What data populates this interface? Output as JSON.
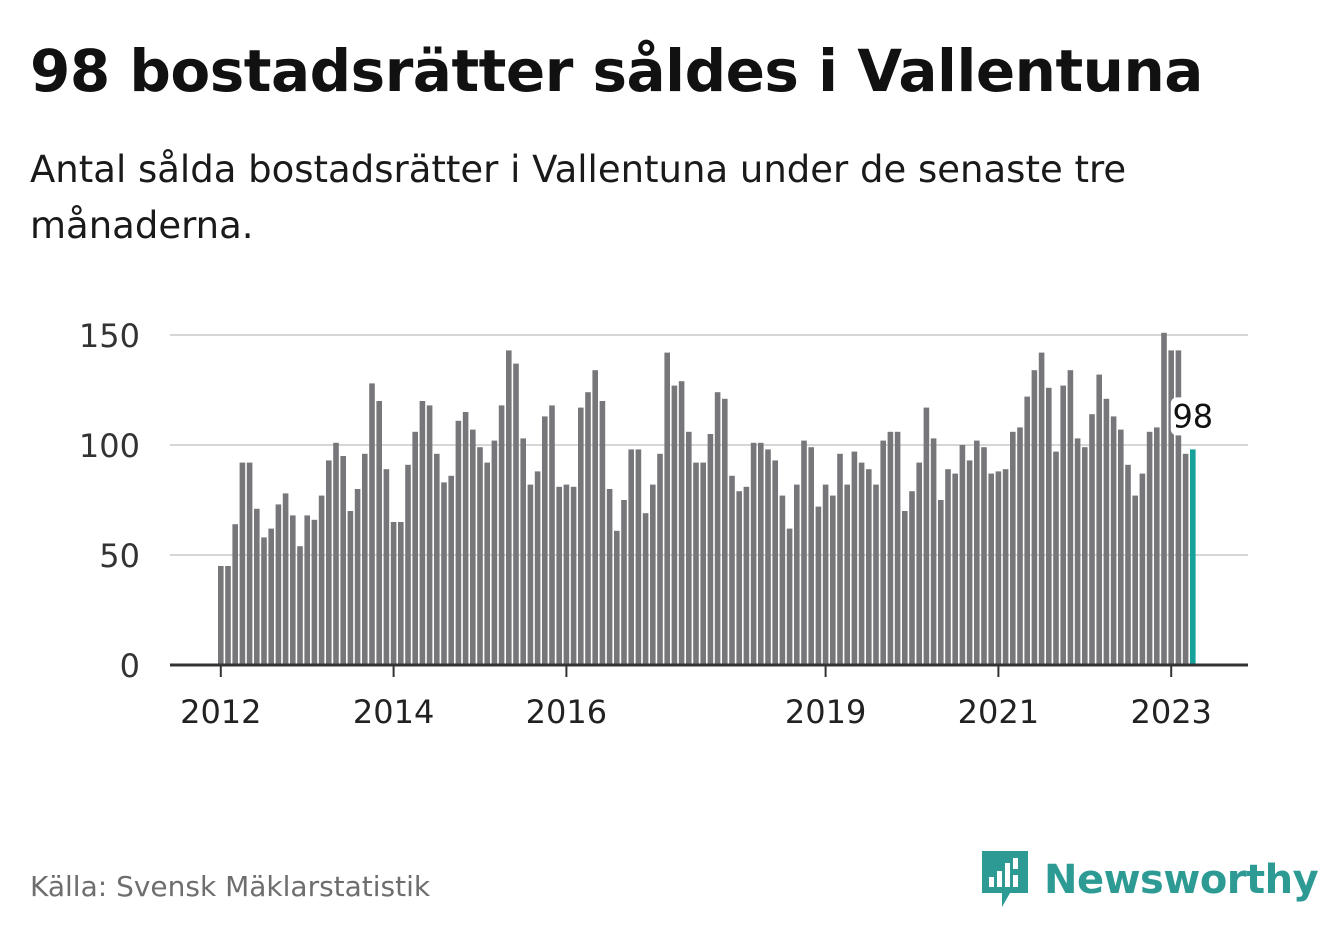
{
  "title": "98 bostadsrätter såldes i Vallentuna",
  "subtitle": "Antal sålda bostadsrätter i Vallentuna under de senaste tre månaderna.",
  "footer": {
    "source": "Källa: Svensk Mäklarstatistik"
  },
  "brand": {
    "name": "Newsworthy",
    "icon": "newsworthy-logo-icon",
    "color": "#2d9b94"
  },
  "colors": {
    "bar": "#77777b",
    "highlight": "#16a29b",
    "grid": "#d6d6d6",
    "axis": "#333333"
  },
  "chart_data": {
    "type": "bar",
    "title": "98 bostadsrätter såldes i Vallentuna",
    "xlabel": "",
    "ylabel": "",
    "ylim": [
      0,
      150
    ],
    "yticks": [
      0,
      50,
      100,
      150
    ],
    "grid": true,
    "start_year": 2012,
    "start_month": 1,
    "xtick_labels": [
      {
        "year": 2012,
        "label": "2012"
      },
      {
        "year": 2014,
        "label": "2014"
      },
      {
        "year": 2016,
        "label": "2016"
      },
      {
        "year": 2019,
        "label": "2019"
      },
      {
        "year": 2021,
        "label": "2021"
      },
      {
        "year": 2023,
        "label": "2023"
      }
    ],
    "values": [
      45,
      45,
      64,
      92,
      92,
      71,
      58,
      62,
      73,
      78,
      68,
      54,
      68,
      66,
      77,
      93,
      101,
      95,
      70,
      80,
      96,
      128,
      120,
      89,
      65,
      65,
      91,
      106,
      120,
      118,
      96,
      83,
      86,
      111,
      115,
      107,
      99,
      92,
      102,
      118,
      143,
      137,
      103,
      82,
      88,
      113,
      118,
      81,
      82,
      81,
      117,
      124,
      134,
      120,
      80,
      61,
      75,
      98,
      98,
      69,
      82,
      96,
      142,
      127,
      129,
      106,
      92,
      92,
      105,
      124,
      121,
      86,
      79,
      81,
      101,
      101,
      98,
      93,
      77,
      62,
      82,
      102,
      99,
      72,
      82,
      77,
      96,
      82,
      97,
      92,
      89,
      82,
      102,
      106,
      106,
      70,
      79,
      92,
      117,
      103,
      75,
      89,
      87,
      100,
      93,
      102,
      99,
      87,
      88,
      89,
      106,
      108,
      122,
      134,
      142,
      126,
      97,
      127,
      134,
      103,
      99,
      114,
      132,
      121,
      113,
      107,
      91,
      77,
      87,
      106,
      108,
      151,
      143,
      143,
      96,
      98
    ],
    "highlight": {
      "index": 135,
      "value": 98,
      "label": "98"
    }
  }
}
